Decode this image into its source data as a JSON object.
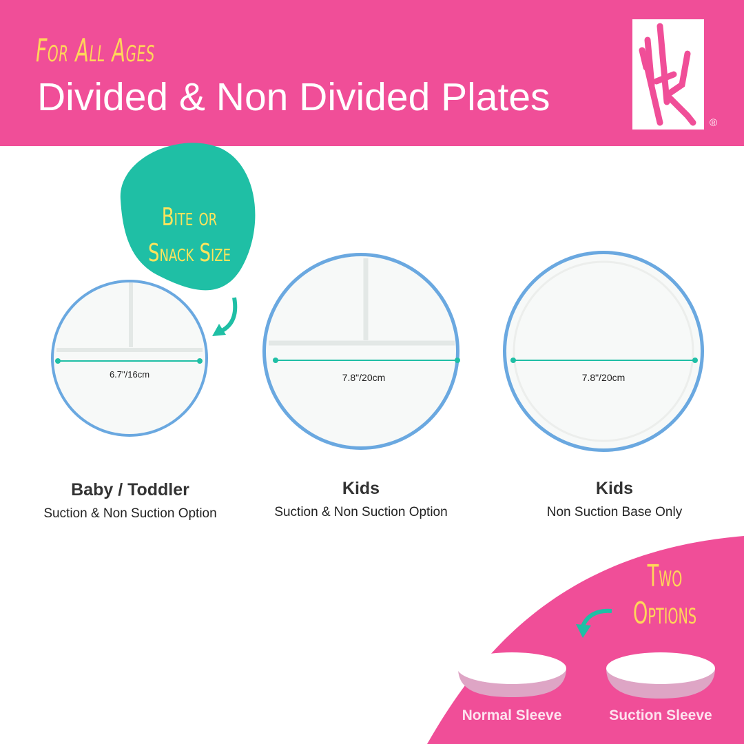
{
  "header": {
    "kicker": "For All Ages",
    "title": "Divided & Non Divided Plates",
    "registered": "®",
    "brand_logo": "deer-antler-logo"
  },
  "colors": {
    "brand_pink": "#f04e98",
    "teal": "#1fbfa5",
    "yellow": "#ffd659",
    "plate_rim": "#6aa8e0"
  },
  "badge": {
    "text_line1": "Bite or",
    "text_line2": "Snack Size"
  },
  "plates": [
    {
      "name": "Baby / Toddler",
      "subtitle": "Suction & Non Suction Option",
      "dimension": "6.7\"/16cm",
      "divided": true
    },
    {
      "name": "Kids",
      "subtitle": "Suction & Non Suction Option",
      "dimension": "7.8\"/20cm",
      "divided": true
    },
    {
      "name": "Kids",
      "subtitle": "Non Suction Base Only",
      "dimension": "7.8\"/20cm",
      "divided": false
    }
  ],
  "options": {
    "line1": "Two",
    "line2": "Options",
    "sleeves": [
      "Normal Sleeve",
      "Suction Sleeve"
    ]
  }
}
